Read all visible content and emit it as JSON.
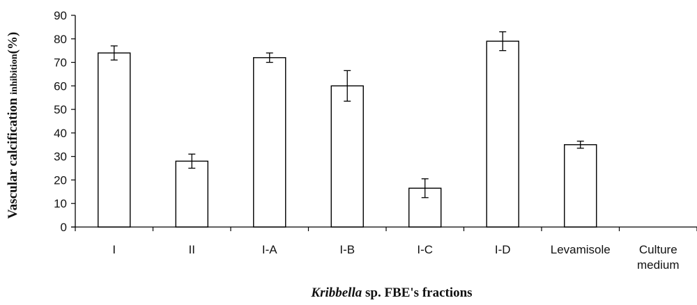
{
  "chart_data": {
    "type": "bar",
    "categories": [
      "I",
      "II",
      "I-A",
      "I-B",
      "I-C",
      "I-D",
      "Levamisole",
      "Culture medium"
    ],
    "category_lines": [
      [
        "I"
      ],
      [
        "II"
      ],
      [
        "I-A"
      ],
      [
        "I-B"
      ],
      [
        "I-C"
      ],
      [
        "I-D"
      ],
      [
        "Levamisole"
      ],
      [
        "Culture",
        "medium"
      ]
    ],
    "values": [
      74,
      28,
      72,
      60,
      16.5,
      79,
      35,
      0
    ],
    "errors": [
      3,
      3,
      2,
      6.5,
      4,
      4,
      1.5,
      0
    ],
    "ylim": [
      0,
      90
    ],
    "yticks": [
      0,
      10,
      20,
      30,
      40,
      50,
      60,
      70,
      80,
      90
    ],
    "ylabel_main": "Vascular calcification",
    "ylabel_small": "inhibition",
    "ylabel_end": "(%)",
    "xlabel_italic": "Kribbella",
    "xlabel_rest": " sp. FBE's fractions",
    "colors": {
      "bar_fill": "#ffffff",
      "bar_stroke": "#000000",
      "axis": "#000000"
    },
    "grid": false,
    "legend": "none"
  }
}
